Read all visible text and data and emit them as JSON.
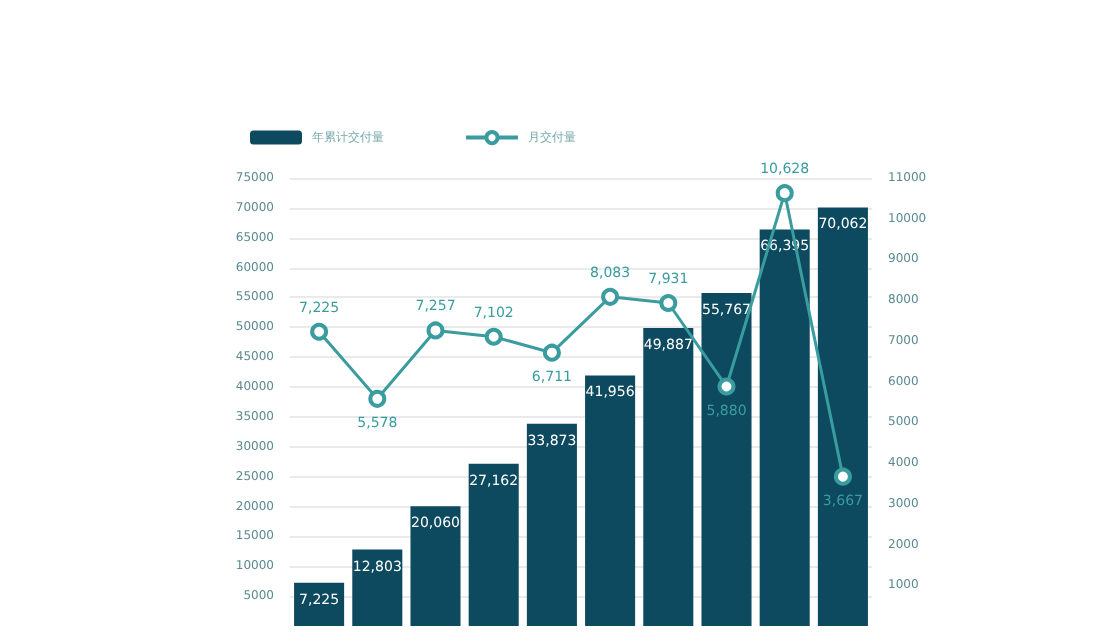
{
  "chart_data": {
    "type": "bar",
    "categories": [
      null,
      null,
      null,
      null,
      null,
      null,
      null,
      null,
      null,
      null
    ],
    "series": [
      {
        "name": "年累计交付量",
        "color": "#0d4a5f",
        "values": [
          7225,
          12803,
          20060,
          27162,
          33873,
          41956,
          49887,
          55767,
          66395,
          70062
        ],
        "value_labels": [
          "7,225",
          "12,803",
          "20,060",
          "27,162",
          "33,873",
          "41,956",
          "49,887",
          "55,767",
          "66,395",
          "70,062"
        ]
      },
      {
        "name": "月交付量",
        "type": "line",
        "axis": "y2",
        "color": "#3a9c9e",
        "values": [
          7225,
          5578,
          7257,
          7102,
          6711,
          8083,
          7931,
          5880,
          10628,
          3667
        ],
        "value_labels": [
          "7,225",
          "5,578",
          "7,257",
          "7,102",
          "6,711",
          "8,083",
          "7,931",
          "5,880",
          "10,628",
          "3,667"
        ]
      }
    ],
    "ylim": [
      0,
      75000
    ],
    "yticks": [
      5000,
      10000,
      15000,
      20000,
      25000,
      30000,
      35000,
      40000,
      45000,
      50000,
      55000,
      60000,
      65000,
      70000,
      75000
    ],
    "y2lim": [
      0,
      11000
    ],
    "y2ticks": [
      1000,
      2000,
      3000,
      4000,
      5000,
      6000,
      7000,
      8000,
      9000,
      10000,
      11000
    ],
    "grid": "y",
    "legend": "top left",
    "marker": "circle",
    "line_style": "solid"
  }
}
